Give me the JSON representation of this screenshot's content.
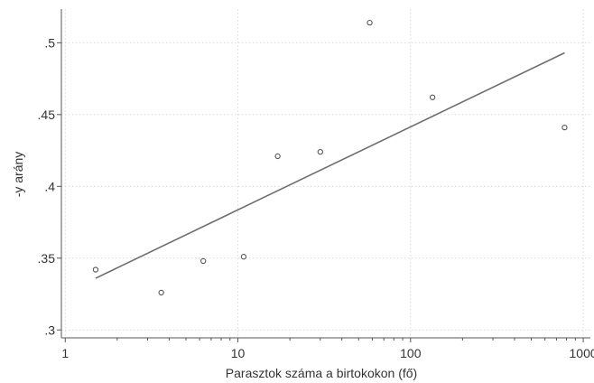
{
  "chart_data": {
    "type": "scatter",
    "title": "",
    "xlabel": "Parasztok száma a birtokokon (fő)",
    "ylabel": "-y arány",
    "x_scale": "log",
    "xlim": [
      0.95,
      1100
    ],
    "ylim": [
      0.2945,
      0.5235
    ],
    "x_ticks": [
      1,
      10,
      100,
      1000
    ],
    "x_tick_labels": [
      "1",
      "10",
      "100",
      "1000"
    ],
    "y_ticks": [
      0.3,
      0.35,
      0.4,
      0.45,
      0.5
    ],
    "y_tick_labels": [
      ".3",
      ".35",
      ".4",
      ".45",
      ".5"
    ],
    "grid": true,
    "points": [
      {
        "x": 1.5,
        "y": 0.342
      },
      {
        "x": 3.6,
        "y": 0.326
      },
      {
        "x": 6.3,
        "y": 0.348
      },
      {
        "x": 10.8,
        "y": 0.351
      },
      {
        "x": 17,
        "y": 0.421
      },
      {
        "x": 30,
        "y": 0.424
      },
      {
        "x": 58,
        "y": 0.514
      },
      {
        "x": 134,
        "y": 0.462
      },
      {
        "x": 780,
        "y": 0.441
      }
    ],
    "fit_line": {
      "x": [
        1.5,
        780
      ],
      "y": [
        0.336,
        0.493
      ]
    },
    "colors": {
      "points": "#555555",
      "fit_line": "#6e6e6e",
      "grid": "#d9d9d9",
      "axis": "#555555"
    }
  }
}
